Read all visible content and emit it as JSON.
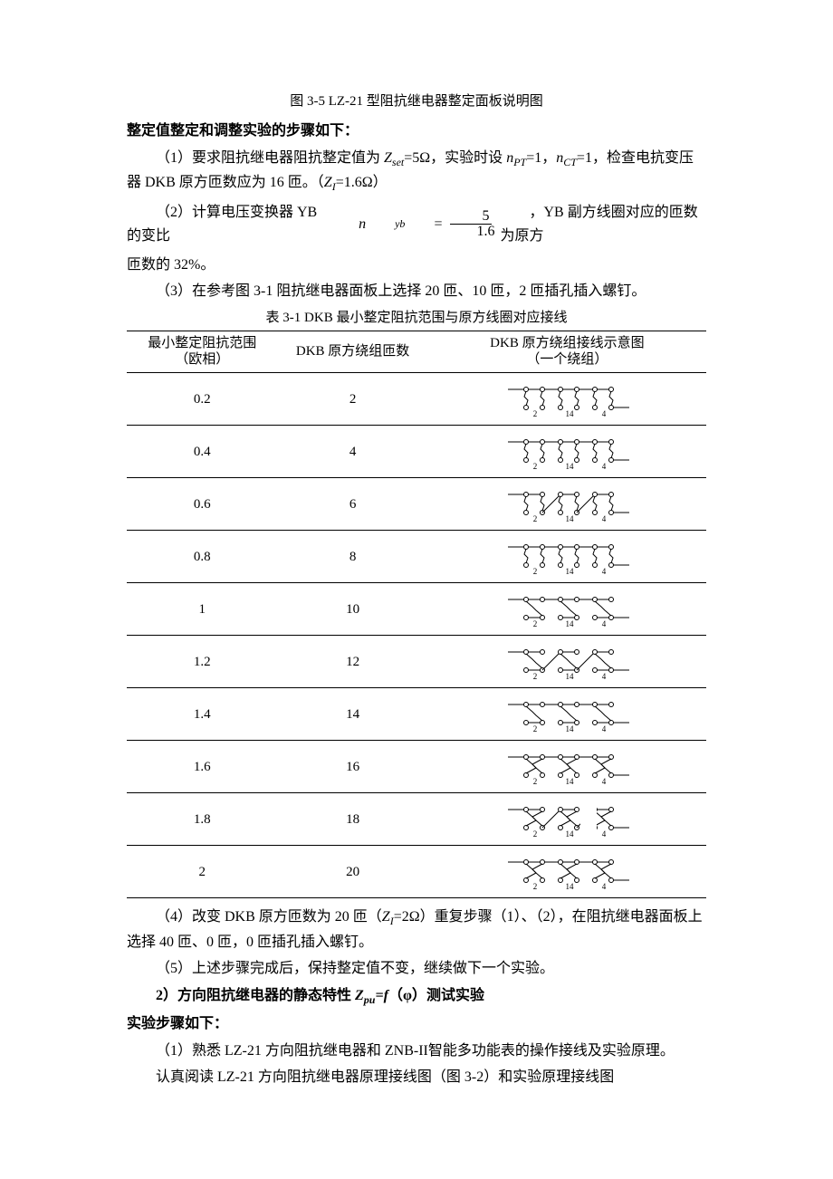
{
  "figure_caption": "图 3-5   LZ-21 型阻抗继电器整定面板说明图",
  "heading1": "整定值整定和调整实验的步骤如下：",
  "p1_text": "（1）要求阻抗继电器阻抗整定值为 ",
  "p1_zset": "Z",
  "p1_zset_sub": "set",
  "p1_mid1": "=5Ω，实验时设 ",
  "p1_npt": "n",
  "p1_npt_sub": "PT",
  "p1_mid2": "=1，",
  "p1_nct": "n",
  "p1_nct_sub": "CT",
  "p1_mid3": "=1，检查电抗变压器 DKB 原方匝数应为 16 匝。（",
  "p1_zi": "Z",
  "p1_zi_sub": "I",
  "p1_end": "=1.6Ω）",
  "p2_text": "（2）计算电压变换器 YB 的变比",
  "p2_nyb": "n",
  "p2_nyb_sub": "yb",
  "p2_eq": " = ",
  "p2_num": "5",
  "p2_den": "1.6",
  "p2_after": "，YB 副方线圈对应的匝数为原方",
  "p2_line2": "匝数的 32%。",
  "p3_text": "（3）在参考图 3-1 阻抗继电器面板上选择 20 匝、10 匝，2 匝插孔插入螺钉。",
  "table_caption": "表 3-1   DKB 最小整定阻抗范围与原方线圈对应接线",
  "table": {
    "headers": [
      "最小整定阻抗范围\n（欧相）",
      "DKB 原方绕组匝数",
      "DKB 原方绕组接线示意图\n（一个绕组）"
    ],
    "rows": [
      {
        "col1": "0.2",
        "col2": "2"
      },
      {
        "col1": "0.4",
        "col2": "4"
      },
      {
        "col1": "0.6",
        "col2": "6"
      },
      {
        "col1": "0.8",
        "col2": "8"
      },
      {
        "col1": "1",
        "col2": "10"
      },
      {
        "col1": "1.2",
        "col2": "12"
      },
      {
        "col1": "1.4",
        "col2": "14"
      },
      {
        "col1": "1.6",
        "col2": "16"
      },
      {
        "col1": "1.8",
        "col2": "18"
      },
      {
        "col1": "2",
        "col2": "20"
      }
    ]
  },
  "p4_text": "（4）改变 DKB 原方匝数为 20 匝（",
  "p4_zi": "Z",
  "p4_zi_sub": "I",
  "p4_mid": "=2Ω）重复步骤（1）、（2），在阻抗继电器面板上选择 40 匝、0 匝，0 匝插孔插入螺钉。",
  "p5_text": "（5）上述步骤完成后，保持整定值不变，继续做下一个实验。",
  "heading2_prefix": "2）方向阻抗继电器的静态特性 ",
  "heading2_zpu": "Z",
  "heading2_zpu_sub": "pu",
  "heading2_eq": "=f",
  "heading2_phi": "（φ）",
  "heading2_suffix": "测试实验",
  "heading3": "实验步骤如下：",
  "p6_text": "（1）熟悉 LZ-21 方向阻抗继电器和 ZNB-II智能多功能表的操作接线及实验原理。",
  "p7_text": "认真阅读 LZ-21 方向阻抗继电器原理接线图（图 3-2）和实验原理接线图",
  "colors": {
    "text": "#000000",
    "background": "#ffffff",
    "rule": "#000000"
  },
  "diagram_labels": {
    "l2": "2",
    "l14": "14",
    "l4": "4"
  }
}
